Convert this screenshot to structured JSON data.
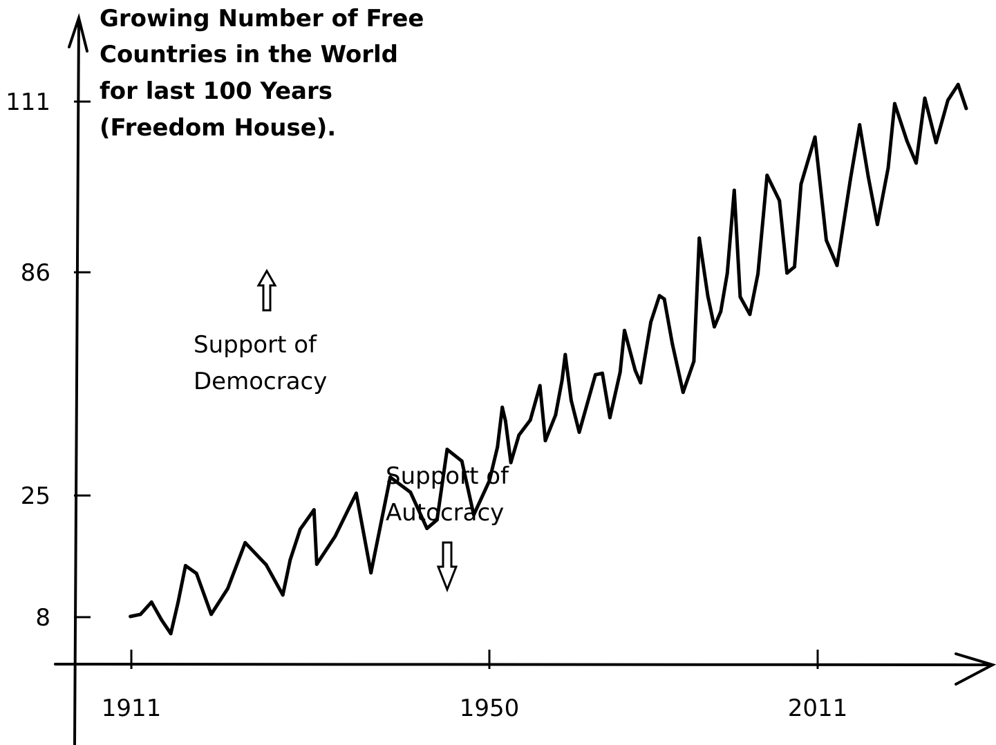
{
  "chart_data": {
    "type": "line",
    "title_lines": [
      "Growing Number of Free",
      "Countries in the World",
      "for last 100 Years",
      "(Freedom House)."
    ],
    "xlabel": "",
    "ylabel": "",
    "x_ticks": [
      1911,
      1950,
      2011
    ],
    "y_ticks": [
      8,
      25,
      86,
      111
    ],
    "grid": false,
    "annotations": [
      {
        "lines": [
          "Support of",
          "Democracy"
        ],
        "arrow": "up"
      },
      {
        "lines": [
          "Support of",
          "Autocracy"
        ],
        "arrow": "down"
      }
    ],
    "series": [
      {
        "values": [
          [
            1910.9,
            8.1
          ],
          [
            1912.0,
            8.4
          ],
          [
            1913.2,
            10.1
          ],
          [
            1914.3,
            7.6
          ],
          [
            1915.3,
            5.7
          ],
          [
            1916.1,
            10.1
          ],
          [
            1916.9,
            15.2
          ],
          [
            1918.1,
            14.1
          ],
          [
            1919.7,
            8.4
          ],
          [
            1921.5,
            12.0
          ],
          [
            1923.4,
            18.4
          ],
          [
            1925.7,
            15.3
          ],
          [
            1927.5,
            11.1
          ],
          [
            1928.3,
            16.0
          ],
          [
            1929.4,
            20.3
          ],
          [
            1930.9,
            23.0
          ],
          [
            1931.2,
            15.4
          ],
          [
            1933.2,
            19.3
          ],
          [
            1935.5,
            25.6
          ],
          [
            1937.1,
            14.2
          ],
          [
            1939.2,
            30.0
          ],
          [
            1941.4,
            25.9
          ],
          [
            1943.2,
            20.4
          ],
          [
            1944.3,
            21.6
          ],
          [
            1945.4,
            37.6
          ],
          [
            1947.0,
            34.4
          ],
          [
            1948.3,
            22.3
          ],
          [
            1950.0,
            29.0
          ],
          [
            1951.5,
            38.2
          ],
          [
            1952.4,
            49.1
          ],
          [
            1953.0,
            45.3
          ],
          [
            1954.0,
            34.0
          ],
          [
            1955.5,
            41.5
          ],
          [
            1957.6,
            45.6
          ],
          [
            1959.4,
            55.0
          ],
          [
            1960.4,
            40.0
          ],
          [
            1962.3,
            47.0
          ],
          [
            1963.5,
            56.4
          ],
          [
            1964.1,
            63.5
          ],
          [
            1965.2,
            51.0
          ],
          [
            1966.7,
            42.3
          ],
          [
            1969.7,
            58.0
          ],
          [
            1971.0,
            58.4
          ],
          [
            1972.4,
            46.3
          ],
          [
            1974.3,
            58.7
          ],
          [
            1975.1,
            70.1
          ],
          [
            1977.1,
            59.2
          ],
          [
            1978.1,
            55.8
          ],
          [
            1980.0,
            72.4
          ],
          [
            1981.6,
            79.6
          ],
          [
            1982.5,
            78.7
          ],
          [
            1984.0,
            66.4
          ],
          [
            1986.0,
            53.2
          ],
          [
            1988.0,
            61.7
          ],
          [
            1989.0,
            91.0
          ],
          [
            1990.6,
            79.5
          ],
          [
            1991.8,
            71.1
          ],
          [
            1993.0,
            75.3
          ],
          [
            1994.2,
            85.7
          ],
          [
            1995.5,
            98.0
          ],
          [
            1996.6,
            79.3
          ],
          [
            1998.4,
            74.5
          ],
          [
            1999.9,
            85.6
          ],
          [
            2001.6,
            100.2
          ],
          [
            2003.9,
            96.5
          ],
          [
            2005.3,
            85.8
          ],
          [
            2006.7,
            86.8
          ],
          [
            2007.9,
            98.9
          ],
          [
            2010.5,
            105.8
          ],
          [
            2012.6,
            90.7
          ],
          [
            2014.6,
            87.0
          ],
          [
            2017.1,
            99.7
          ],
          [
            2018.8,
            107.6
          ],
          [
            2020.4,
            100.0
          ],
          [
            2022.1,
            93.0
          ],
          [
            2024.1,
            101.3
          ],
          [
            2025.3,
            110.7
          ],
          [
            2027.6,
            105.2
          ],
          [
            2029.3,
            102.0
          ],
          [
            2030.9,
            111.5
          ],
          [
            2033.0,
            105.0
          ],
          [
            2035.2,
            111.2
          ],
          [
            2037.1,
            113.5
          ],
          [
            2038.6,
            110.0
          ]
        ]
      }
    ]
  }
}
